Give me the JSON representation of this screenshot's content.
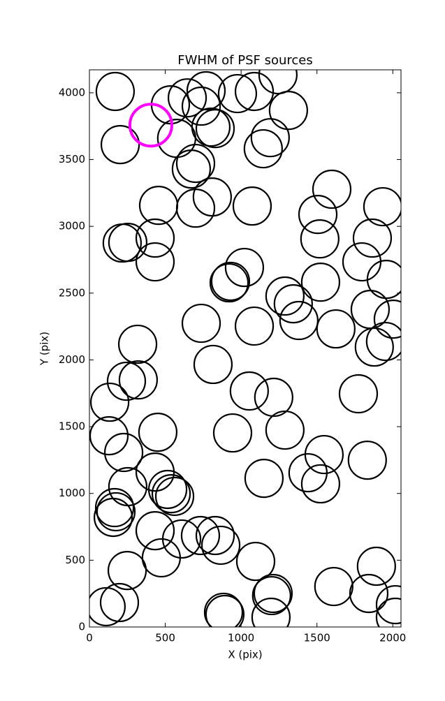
{
  "chart_data": {
    "type": "scatter",
    "title": "FWHM of PSF sources",
    "x_label": "X (pix)",
    "y_label": "Y (pix)",
    "xlim": [
      0,
      2054
    ],
    "ylim": [
      0,
      4172
    ],
    "xticks": [
      0,
      500,
      1000,
      1500,
      2000
    ],
    "yticks": [
      0,
      500,
      1000,
      1500,
      2000,
      2500,
      3000,
      3500,
      4000
    ],
    "series": [
      {
        "color": "#000000",
        "x": [
          170,
          203,
          534,
          645,
          769,
          737,
          976,
          1087,
          1243,
          1312,
          801,
          829,
          575,
          1192,
          1146,
          700,
          672,
          456,
          810,
          700,
          1073,
          1598,
          1506,
          1934,
          216,
          253,
          433,
          433,
          1519,
          1865,
          1796,
          1957,
          1022,
          921,
          930,
          1524,
          1289,
          1344,
          1381,
          1851,
          2003,
          737,
          1087,
          1625,
          1878,
          1952,
          318,
          815,
          244,
          322,
          134,
          1054,
          1215,
          1773,
          129,
          451,
          944,
          1289,
          226,
          1547,
          1832,
          433,
          1441,
          1524,
          1151,
          253,
          516,
          539,
          562,
          166,
          175,
          157,
          433,
          608,
          732,
          829,
          866,
          474,
          249,
          1096,
          1892,
          1611,
          1842,
          1211,
          1201,
          198,
          110,
          884,
          893,
          1197,
          2017,
          2017
        ],
        "values": [
          4010,
          3612,
          3910,
          3962,
          4015,
          3900,
          3994,
          4010,
          4135,
          3868,
          3743,
          3732,
          3659,
          3664,
          3581,
          3471,
          3429,
          3157,
          3220,
          3136,
          3152,
          3278,
          3089,
          3147,
          2875,
          2880,
          2912,
          2734,
          2906,
          2912,
          2734,
          2603,
          2692,
          2577,
          2588,
          2582,
          2478,
          2420,
          2295,
          2378,
          2305,
          2274,
          2253,
          2232,
          2096,
          2138,
          2117,
          1966,
          1840,
          1850,
          1683,
          1767,
          1720,
          1746,
          1432,
          1458,
          1453,
          1474,
          1307,
          1291,
          1249,
          1160,
          1155,
          1072,
          1113,
          1051,
          1030,
          998,
          978,
          894,
          863,
          821,
          721,
          659,
          685,
          685,
          612,
          518,
          423,
          491,
          455,
          303,
          251,
          251,
          235,
          183,
          152,
          110,
          94,
          73,
          167,
          73
        ]
      },
      {
        "color": "#ff00ff",
        "x": [
          405
        ],
        "values": [
          3758
        ]
      }
    ]
  }
}
